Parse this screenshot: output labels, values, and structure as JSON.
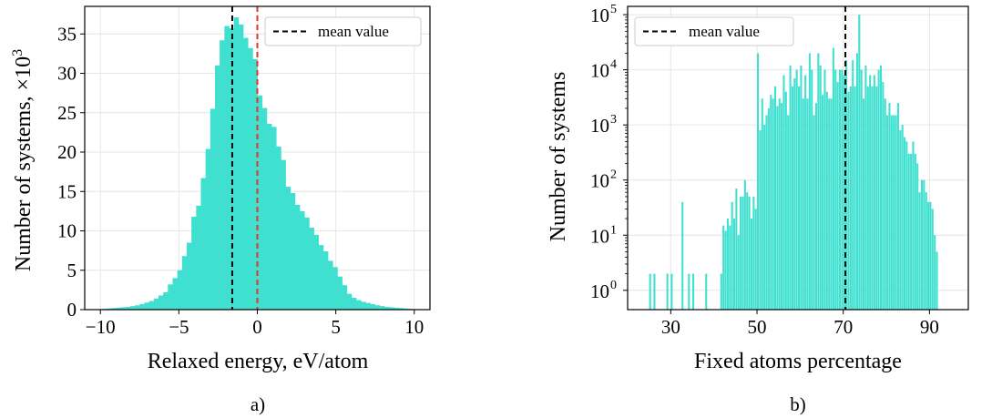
{
  "panels": [
    {
      "label": "a)"
    },
    {
      "label": "b)"
    }
  ],
  "colors": {
    "bars": "#40e0d0",
    "grid": "#e6e6e6",
    "mean_line": "#000000",
    "zero_line": "#e8312a"
  },
  "chart_data": [
    {
      "type": "bar",
      "subtype": "histogram",
      "title": "",
      "xlabel": "Relaxed energy, eV/atom",
      "ylabel": "Number of systems, ×10³",
      "ylabel_main": "Number of systems, ×10",
      "ylabel_exp": "3",
      "xlim": [
        -11,
        11
      ],
      "ylim": [
        0,
        38.5
      ],
      "xticks": [
        -10,
        -5,
        0,
        5,
        10
      ],
      "xtick_labels": [
        "−10",
        "−5",
        "0",
        "5",
        "10"
      ],
      "yticks": [
        0,
        5,
        10,
        15,
        20,
        25,
        30,
        35
      ],
      "yscale": "linear",
      "grid": true,
      "bin_start": -9.9,
      "bin_width": 0.3,
      "values": [
        0.1,
        0.15,
        0.2,
        0.25,
        0.3,
        0.35,
        0.45,
        0.55,
        0.7,
        0.9,
        1.1,
        1.4,
        1.8,
        2.2,
        3.2,
        4.0,
        5.0,
        6.8,
        8.5,
        11.8,
        13.2,
        16.7,
        20.4,
        25.5,
        31.0,
        34.2,
        36.0,
        35.7,
        37.1,
        36.2,
        34.5,
        33.2,
        31.8,
        27.2,
        25.6,
        23.6,
        23.2,
        20.7,
        19.0,
        15.6,
        14.8,
        13.3,
        12.5,
        11.7,
        10.4,
        9.5,
        8.2,
        7.4,
        6.2,
        5.4,
        4.2,
        3.1,
        2.0,
        1.5,
        1.2,
        1.0,
        0.85,
        0.7,
        0.55,
        0.45,
        0.35,
        0.3,
        0.25,
        0.2,
        0.15,
        0.1
      ],
      "vlines": [
        {
          "x": -1.6,
          "style": "dashed",
          "color": "#000000",
          "name": "mean value"
        },
        {
          "x": 0,
          "style": "dashed",
          "color": "#e8312a"
        }
      ],
      "legend": {
        "entries": [
          "mean value"
        ],
        "position": "top-right"
      }
    },
    {
      "type": "bar",
      "subtype": "histogram",
      "title": "",
      "xlabel": "Fixed atoms percentage",
      "ylabel": "Number of systems",
      "xlim": [
        20,
        99
      ],
      "ylim_exp": [
        -0.35,
        5.15
      ],
      "xticks": [
        30,
        50,
        70,
        90
      ],
      "yticks_exp": [
        0,
        1,
        2,
        3,
        4,
        5
      ],
      "ytick_base": "10",
      "yscale": "log",
      "grid": true,
      "bin_start": 25,
      "bin_width": 0.5,
      "values": [
        2,
        0,
        2,
        0,
        0,
        0,
        0,
        0,
        2,
        0,
        2,
        0,
        0,
        0,
        0,
        40,
        0,
        0,
        2,
        0,
        2,
        0,
        0,
        0,
        0,
        0,
        2,
        0,
        0,
        0,
        0,
        0,
        0,
        2,
        15,
        12,
        20,
        15,
        40,
        20,
        70,
        10,
        50,
        50,
        100,
        60,
        50,
        20,
        50,
        30,
        20000,
        800,
        3000,
        1000,
        1500,
        2000,
        3500,
        3000,
        5000,
        2200,
        3000,
        2500,
        8000,
        4000,
        1500,
        12000,
        5000,
        7000,
        10000,
        5000,
        12000,
        3000,
        8000,
        3000,
        20000,
        10000,
        1500,
        2500,
        20000,
        12000,
        3500,
        10000,
        4000,
        3000,
        3000,
        25000,
        10000,
        6000,
        10000,
        10000,
        8000,
        15000,
        4000,
        5000,
        15000,
        5000,
        20000,
        100000,
        10000,
        3000,
        12000,
        5000,
        8000,
        5000,
        8000,
        5000,
        10000,
        12000,
        6000,
        3000,
        1500,
        2500,
        1500,
        1500,
        1500,
        2500,
        800,
        1000,
        600,
        500,
        300,
        300,
        500,
        300,
        200,
        60,
        100,
        100,
        60,
        40,
        40,
        30,
        10,
        5
      ],
      "vlines": [
        {
          "x": 70.5,
          "style": "dashed",
          "color": "#000000",
          "name": "mean value"
        }
      ],
      "legend": {
        "entries": [
          "mean value"
        ],
        "position": "top-left"
      }
    }
  ]
}
